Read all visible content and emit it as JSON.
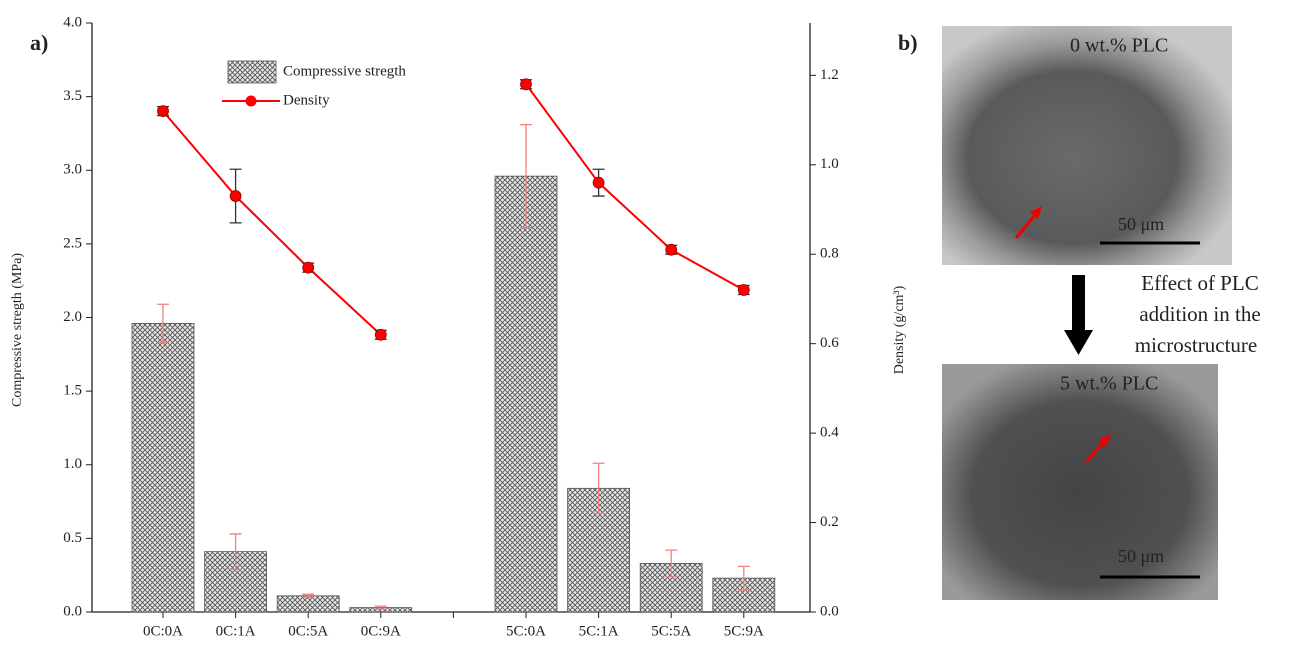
{
  "chart_data": {
    "type": "bar",
    "panel_label": "a)",
    "y_label": "Compressive stregth (MPa)",
    "y2_label": "Density (g/cm³)",
    "categories": [
      "0C:0A",
      "0C:1A",
      "0C:5A",
      "0C:9A",
      null,
      "5C:0A",
      "5C:1A",
      "5C:5A",
      "5C:9A"
    ],
    "series": [
      {
        "name": "Compressive stregth",
        "type": "bar",
        "color": "#555555",
        "error_color": "#f08080",
        "values": [
          1.96,
          0.41,
          0.11,
          0.03,
          null,
          2.96,
          0.84,
          0.33,
          0.23
        ],
        "errors": [
          0.13,
          0.12,
          0.01,
          0.01,
          null,
          0.35,
          0.17,
          0.09,
          0.08
        ]
      },
      {
        "name": "Density",
        "type": "line",
        "axis": "y2",
        "color": "#ff0000",
        "error_color": "#333333",
        "values": [
          1.12,
          0.93,
          0.77,
          0.62,
          null,
          1.18,
          0.96,
          0.81,
          0.72
        ],
        "errors": [
          0.01,
          0.06,
          0.01,
          0.01,
          null,
          0.01,
          0.03,
          0.01,
          0.01
        ]
      }
    ],
    "ylim": [
      0,
      4
    ],
    "yticks": [
      {
        "value": 0,
        "label": "0.0"
      },
      {
        "value": 0.5,
        "label": "0.5"
      },
      {
        "value": 1,
        "label": "1.0"
      },
      {
        "value": 1.5,
        "label": "1.5"
      },
      {
        "value": 2,
        "label": "2.0"
      },
      {
        "value": 2.5,
        "label": "2.5"
      },
      {
        "value": 3,
        "label": "3.0"
      },
      {
        "value": 3.5,
        "label": "3.5"
      },
      {
        "value": 4,
        "label": "4.0"
      }
    ],
    "y2lim": [
      0,
      1.317
    ],
    "y2ticks": [
      {
        "value": 0,
        "label": "0.0"
      },
      {
        "value": 0.2,
        "label": "0.2"
      },
      {
        "value": 0.4,
        "label": "0.4"
      },
      {
        "value": 0.6,
        "label": "0.6"
      },
      {
        "value": 0.8,
        "label": "0.8"
      },
      {
        "value": 1,
        "label": "1.0"
      },
      {
        "value": 1.2,
        "label": "1.2"
      }
    ],
    "legend": "upper-left"
  },
  "panel_b": {
    "label": "b)",
    "top_image": {
      "caption": "0 wt.% PLC",
      "scale": "50 μm"
    },
    "arrow_text": [
      "Effect of PLC",
      "addition in the",
      "microstructure"
    ],
    "bottom_image": {
      "caption": "5 wt.% PLC",
      "scale": "50 μm"
    }
  }
}
